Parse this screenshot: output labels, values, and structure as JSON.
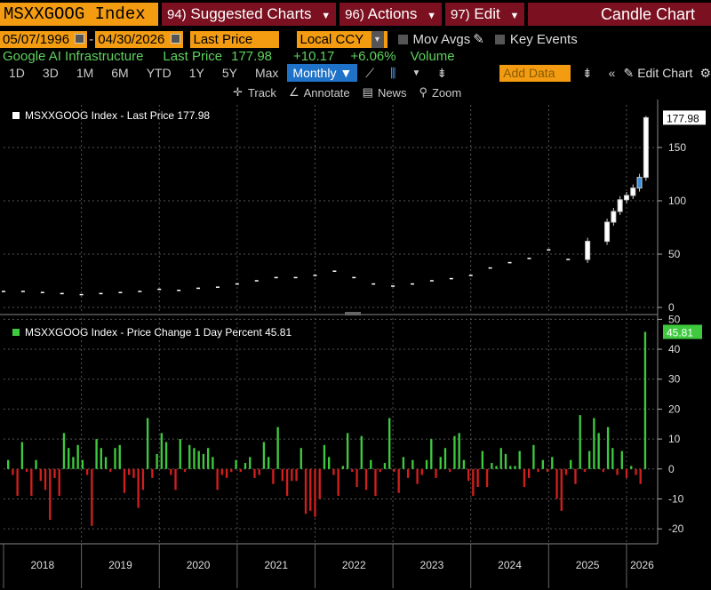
{
  "header": {
    "ticker": "MSXXGOOG Index",
    "menus": [
      {
        "num": "94)",
        "label": "Suggested Charts"
      },
      {
        "num": "96)",
        "label": "Actions"
      },
      {
        "num": "97)",
        "label": "Edit"
      }
    ],
    "chart_type": "Candle Chart"
  },
  "controls": {
    "start_date": "05/07/1996",
    "end_date": "04/30/2026",
    "field": "Last Price",
    "currency": "Local CCY",
    "mov_avgs": "Mov Avgs",
    "key_events": "Key Events"
  },
  "quote": {
    "name": "Google AI Infrastructure",
    "last_label": "Last Price",
    "last": "177.98",
    "change": "+10.17",
    "change_pct": "+6.06%",
    "volume": "Volume"
  },
  "timeframes": [
    "1D",
    "3D",
    "1M",
    "6M",
    "YTD",
    "1Y",
    "5Y",
    "Max"
  ],
  "frequency": "Monthly ▼",
  "add_data": "Add Data",
  "edit_chart": "Edit Chart",
  "subtools": [
    "Track",
    "Annotate",
    "News",
    "Zoom"
  ],
  "chart_data": [
    {
      "type": "line",
      "legend": "MSXXGOOG Index - Last Price 177.98",
      "last_value_label": "177.98",
      "x": [
        "2018-01",
        "2018-04",
        "2018-07",
        "2018-10",
        "2019-01",
        "2019-04",
        "2019-07",
        "2019-10",
        "2020-01",
        "2020-04",
        "2020-07",
        "2020-10",
        "2021-01",
        "2021-04",
        "2021-07",
        "2021-10",
        "2022-01",
        "2022-04",
        "2022-07",
        "2022-10",
        "2023-01",
        "2023-04",
        "2023-07",
        "2023-10",
        "2024-01",
        "2024-04",
        "2024-07",
        "2024-10",
        "2025-01",
        "2025-04",
        "2025-07",
        "2025-10",
        "2025-11",
        "2025-12",
        "2026-01",
        "2026-02",
        "2026-03",
        "2026-04"
      ],
      "values": [
        15,
        15,
        14,
        13,
        12,
        13,
        14,
        15,
        17,
        16,
        18,
        19,
        22,
        25,
        28,
        28,
        30,
        34,
        28,
        22,
        20,
        22,
        25,
        27,
        30,
        37,
        42,
        46,
        54,
        45,
        62,
        80,
        90,
        101,
        105,
        112,
        122,
        178
      ],
      "yticks": [
        0,
        50,
        100,
        150
      ],
      "ylim": [
        -5,
        190
      ],
      "xlabels": [
        "2018",
        "2019",
        "2020",
        "2021",
        "2022",
        "2023",
        "2024",
        "2025",
        "2026"
      ]
    },
    {
      "type": "bar",
      "legend": "MSXXGOOG Index - Price Change 1 Day Percent 45.81",
      "last_value_label": "45.81",
      "values": [
        3,
        -2,
        -9,
        9,
        -1,
        -9,
        3,
        -4,
        -7,
        -17,
        -3,
        -9,
        12,
        7,
        4,
        8,
        3,
        -2,
        -19,
        10,
        7,
        4,
        -1,
        7,
        8,
        -8,
        -2,
        -3,
        -13,
        -7,
        17,
        -3,
        5,
        12,
        9,
        -2,
        -7,
        10,
        -1,
        8,
        7,
        6,
        5,
        7,
        4,
        -7,
        -2,
        -3,
        -1,
        3,
        -1,
        2,
        4,
        -3,
        -2,
        9,
        4,
        -5,
        14,
        -4,
        -9,
        -4,
        -4,
        7,
        -15,
        -14,
        -16,
        -10,
        8,
        4,
        -2,
        -9,
        1,
        12,
        -1,
        -6,
        11,
        -7,
        3,
        -9,
        -1,
        2,
        17,
        -1,
        -8,
        4,
        -3,
        3,
        -5,
        -2,
        3,
        10,
        -3,
        4,
        7,
        -1,
        11,
        12,
        3,
        -4,
        -9,
        -6,
        6,
        -6,
        2,
        1,
        7,
        5,
        1,
        1,
        6,
        -6,
        -3,
        8,
        -1,
        3,
        -1,
        4,
        -10,
        -14,
        -2,
        3,
        -5,
        18,
        -1,
        6,
        17,
        12,
        -1,
        14,
        7,
        -2,
        6,
        -3,
        1,
        -2,
        -5,
        45.81
      ],
      "yticks": [
        -20,
        -10,
        0,
        10,
        20,
        30,
        40,
        50
      ],
      "ylim": [
        -25,
        51
      ]
    }
  ],
  "colors": {
    "up": "#3ec93e",
    "down": "#d01f1f",
    "accent": "#f39c12",
    "menu": "#7b1020",
    "selected": "#1e72c8"
  }
}
